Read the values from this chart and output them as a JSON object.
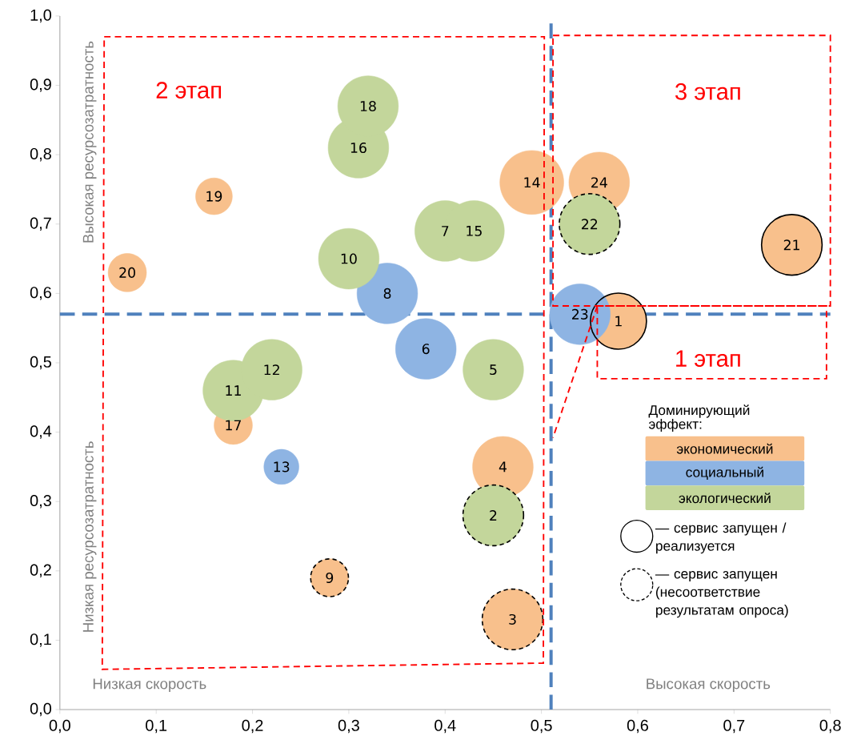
{
  "chart_data": {
    "type": "bubble",
    "xlim": [
      0,
      0.8
    ],
    "ylim": [
      0,
      1
    ],
    "xticks": [
      {
        "value": 0,
        "label": "0,0"
      },
      {
        "value": 0.1,
        "label": "0,1"
      },
      {
        "value": 0.2,
        "label": "0,2"
      },
      {
        "value": 0.3,
        "label": "0,3"
      },
      {
        "value": 0.4,
        "label": "0,4"
      },
      {
        "value": 0.5,
        "label": "0,5"
      },
      {
        "value": 0.6,
        "label": "0,6"
      },
      {
        "value": 0.7,
        "label": "0,7"
      },
      {
        "value": 0.8,
        "label": "0,8"
      }
    ],
    "yticks": [
      {
        "value": 0,
        "label": "0,0"
      },
      {
        "value": 0.1,
        "label": "0,1"
      },
      {
        "value": 0.2,
        "label": "0,2"
      },
      {
        "value": 0.3,
        "label": "0,3"
      },
      {
        "value": 0.4,
        "label": "0,4"
      },
      {
        "value": 0.5,
        "label": "0,5"
      },
      {
        "value": 0.6,
        "label": "0,6"
      },
      {
        "value": 0.7,
        "label": "0,7"
      },
      {
        "value": 0.8,
        "label": "0,8"
      },
      {
        "value": 0.9,
        "label": "0,9"
      },
      {
        "value": 1,
        "label": "1,0"
      }
    ],
    "legend": "bottom right",
    "legend_title": "Доминирующий эффект:",
    "series": [
      {
        "name": "экономический",
        "color": "#f8c08c",
        "x": [
          0.58,
          0.47,
          0.46,
          0.28,
          0.49,
          0.18,
          0.16,
          0.07,
          0.76,
          0.56
        ],
        "values": [
          0.56,
          0.13,
          0.35,
          0.19,
          0.76,
          0.41,
          0.74,
          0.63,
          0.67,
          0.76
        ],
        "sizes": [
          0.77,
          0.9,
          0.9,
          0.35,
          1,
          0.36,
          0.33,
          0.36,
          0.9,
          0.9
        ]
      },
      {
        "name": "социальный",
        "color": "#8eb4e3",
        "x": [
          0.38,
          0.34,
          0.23,
          0.54
        ],
        "values": [
          0.52,
          0.6,
          0.35,
          0.57
        ],
        "sizes": [
          0.9,
          0.9,
          0.3,
          0.9
        ]
      },
      {
        "name": "экологический",
        "color": "#c3d69b",
        "x": [
          0.45,
          0.45,
          0.4,
          0.3,
          0.18,
          0.22,
          0.43,
          0.31,
          0.32,
          0.55
        ],
        "values": [
          0.28,
          0.49,
          0.69,
          0.65,
          0.46,
          0.49,
          0.69,
          0.81,
          0.87,
          0.7
        ],
        "sizes": [
          0.9,
          0.9,
          0.9,
          0.9,
          0.9,
          0.9,
          0.9,
          0.9,
          0.9,
          0.9
        ]
      },
      {
        "name": "— сервис запущен / реализуется",
        "color": "#000000",
        "line_style": "solid",
        "x": [
          0.58,
          0.76
        ],
        "values": [
          0.56,
          0.67
        ],
        "sizes": [
          0.77,
          0.9
        ]
      },
      {
        "name": "— сервис запущен (несоответствие результатам опроса)",
        "color": "#000000",
        "line_style": "dashed",
        "x": [
          0.45,
          0.47,
          0.28,
          0.55
        ],
        "values": [
          0.28,
          0.13,
          0.19,
          0.7
        ],
        "sizes": [
          0.9,
          0.9,
          0.35,
          0.9
        ]
      }
    ],
    "ref_lines": [
      {
        "axis": "x",
        "value": 0.51,
        "color": "#4f81bd",
        "line_style": "dashed"
      },
      {
        "axis": "y",
        "value": 0.57,
        "color": "#4f81bd",
        "line_style": "dashed"
      }
    ],
    "annotations": [
      "2 этап",
      "3 этап",
      "1 этап",
      "Высокая ресурсозатратность",
      "Низкая ресурсозатратность",
      "Низкая скорость",
      "Высокая скорость",
      {
        "text": "1",
        "x": 0.58,
        "y": 0.56
      },
      {
        "text": "2",
        "x": 0.45,
        "y": 0.28
      },
      {
        "text": "3",
        "x": 0.47,
        "y": 0.13
      },
      {
        "text": "4",
        "x": 0.46,
        "y": 0.35
      },
      {
        "text": "5",
        "x": 0.45,
        "y": 0.49
      },
      {
        "text": "6",
        "x": 0.38,
        "y": 0.52
      },
      {
        "text": "7",
        "x": 0.4,
        "y": 0.69
      },
      {
        "text": "8",
        "x": 0.34,
        "y": 0.6
      },
      {
        "text": "9",
        "x": 0.28,
        "y": 0.19
      },
      {
        "text": "10",
        "x": 0.3,
        "y": 0.65
      },
      {
        "text": "11",
        "x": 0.18,
        "y": 0.46
      },
      {
        "text": "12",
        "x": 0.22,
        "y": 0.49
      },
      {
        "text": "13",
        "x": 0.23,
        "y": 0.35
      },
      {
        "text": "14",
        "x": 0.49,
        "y": 0.76
      },
      {
        "text": "15",
        "x": 0.43,
        "y": 0.69
      },
      {
        "text": "16",
        "x": 0.31,
        "y": 0.81
      },
      {
        "text": "17",
        "x": 0.18,
        "y": 0.41
      },
      {
        "text": "18",
        "x": 0.32,
        "y": 0.87
      },
      {
        "text": "19",
        "x": 0.16,
        "y": 0.74
      },
      {
        "text": "20",
        "x": 0.07,
        "y": 0.63
      },
      {
        "text": "21",
        "x": 0.76,
        "y": 0.67
      },
      {
        "text": "22",
        "x": 0.55,
        "y": 0.7
      },
      {
        "text": "23",
        "x": 0.54,
        "y": 0.57
      },
      {
        "text": "24",
        "x": 0.56,
        "y": 0.76
      }
    ]
  }
}
